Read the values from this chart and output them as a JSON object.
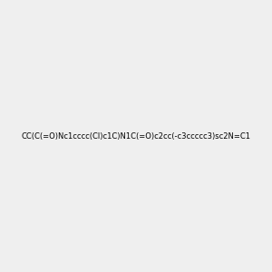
{
  "smiles": "CC(C(=O)Nc1cccc(Cl)c1C)N1C(=O)c2cc(-c3ccccc3)sc2N=C1",
  "image_size": 300,
  "background_color": "#efefef",
  "title": "",
  "atom_colors": {
    "N": "#0000ff",
    "O": "#ff0000",
    "S": "#cccc00",
    "Cl": "#00cc00",
    "H_on_N": "#4488aa"
  }
}
